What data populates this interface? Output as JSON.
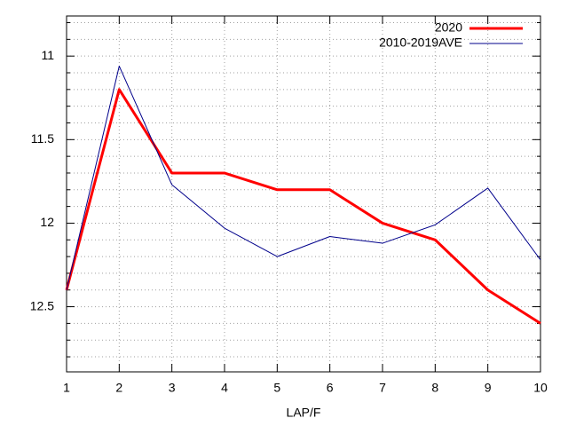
{
  "chart_data": {
    "type": "line",
    "x_label": "LAP/F",
    "x": [
      1,
      2,
      3,
      4,
      5,
      6,
      7,
      8,
      9,
      10
    ],
    "xlim": [
      1,
      10
    ],
    "xticks": [
      1,
      2,
      3,
      4,
      5,
      6,
      7,
      8,
      9,
      10
    ],
    "ylim": [
      12.89,
      10.76
    ],
    "yticks": [
      11,
      11.5,
      12,
      12.5
    ],
    "yminorticks": [
      10.8,
      10.9,
      11.1,
      11.2,
      11.3,
      11.4,
      11.6,
      11.7,
      11.8,
      11.9,
      12.1,
      12.2,
      12.3,
      12.4,
      12.6,
      12.7,
      12.8
    ],
    "grid": true,
    "legend": "top-right",
    "series": [
      {
        "name": "2020",
        "color": "#ff0000",
        "width": 3,
        "values": [
          12.4,
          11.2,
          11.7,
          11.7,
          11.8,
          11.8,
          12.0,
          12.1,
          12.4,
          12.6
        ]
      },
      {
        "name": "2010-2019AVE",
        "color": "#00008b",
        "width": 1,
        "values": [
          12.4,
          11.06,
          11.77,
          12.03,
          12.2,
          12.08,
          12.12,
          12.01,
          11.79,
          12.22
        ]
      }
    ]
  }
}
